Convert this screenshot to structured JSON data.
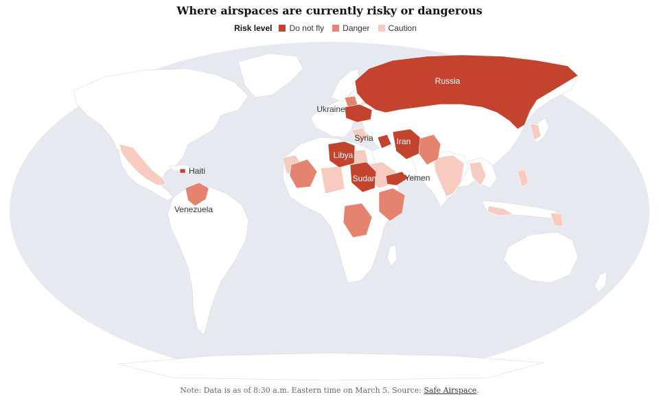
{
  "title": "Where airspaces are currently risky or dangerous",
  "legend": {
    "title": "Risk level",
    "items": [
      {
        "label": "Do not fly",
        "color": "#c3432e"
      },
      {
        "label": "Danger",
        "color": "#e48470"
      },
      {
        "label": "Caution",
        "color": "#f8cbc0"
      }
    ]
  },
  "colors": {
    "ocean": "#e6e9ef",
    "land": "#ffffff",
    "do_not_fly": "#c3432e",
    "danger": "#e48470",
    "caution": "#f8cbc0"
  },
  "labels": {
    "russia": "Russia",
    "ukraine": "Ukraine",
    "syria": "Syria",
    "iran": "Iran",
    "libya": "Libya",
    "sudan": "Sudan",
    "yemen": "Yemen",
    "haiti": "Haiti",
    "venezuela": "Venezuela"
  },
  "note": {
    "prefix": "Note: Data is as of 8:30 a.m. Eastern time on March 5. Source: ",
    "link": "Safe Airspace",
    "suffix": "."
  }
}
